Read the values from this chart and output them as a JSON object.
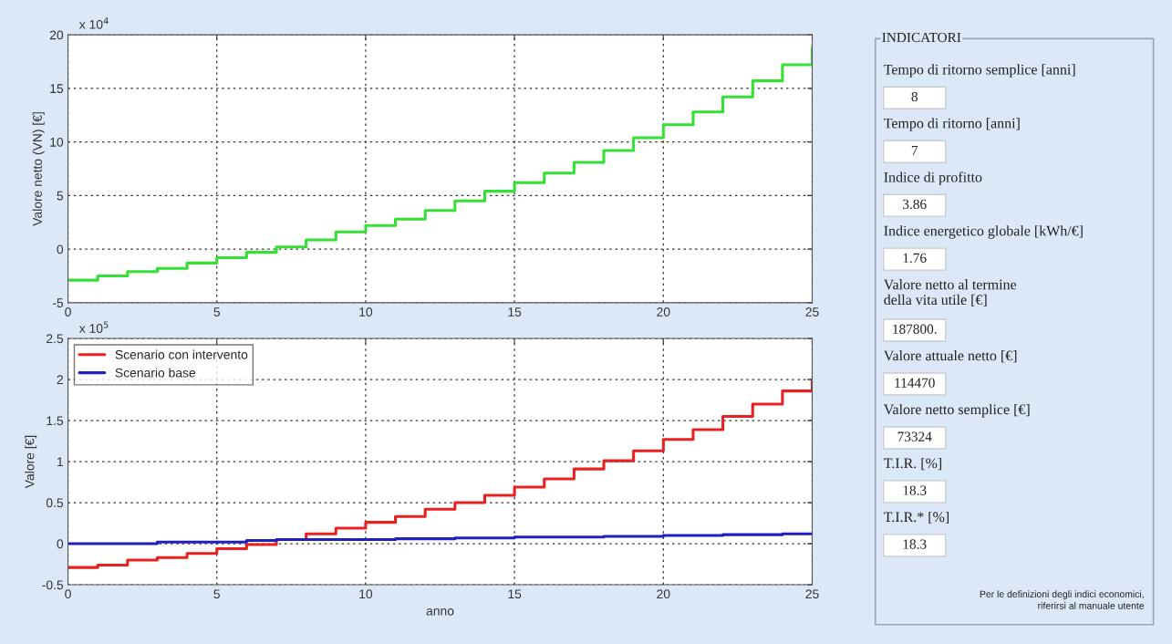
{
  "chart_data": [
    {
      "type": "step",
      "ylabel": "Valore netto (VN) [€]",
      "annotations": [
        "x 10$^{4}$"
      ],
      "x": [
        0,
        1,
        2,
        3,
        4,
        5,
        6,
        7,
        8,
        9,
        10,
        11,
        12,
        13,
        14,
        15,
        16,
        17,
        18,
        19,
        20,
        21,
        22,
        23,
        24,
        25
      ],
      "series": [
        {
          "color": "#33e033",
          "values": [
            -2.9,
            -2.5,
            -2.1,
            -1.8,
            -1.3,
            -0.8,
            -0.3,
            0.2,
            0.85,
            1.6,
            2.2,
            2.8,
            3.6,
            4.5,
            5.4,
            6.2,
            7.1,
            8.1,
            9.2,
            10.4,
            11.6,
            12.8,
            14.2,
            15.7,
            17.2,
            18.8
          ]
        }
      ],
      "xlim": [
        0,
        25
      ],
      "xticks": [
        0,
        5,
        10,
        15,
        20,
        25
      ],
      "ylim": [
        -5,
        20
      ],
      "yticks": [
        -5,
        0,
        5,
        10,
        15,
        20
      ],
      "grid": true,
      "line_style": "solid"
    },
    {
      "type": "step",
      "xlabel": "anno",
      "ylabel": "Valore [€]",
      "annotations": [
        "x 10$^{5}$"
      ],
      "x": [
        0,
        1,
        2,
        3,
        4,
        5,
        6,
        7,
        8,
        9,
        10,
        11,
        12,
        13,
        14,
        15,
        16,
        17,
        18,
        19,
        20,
        21,
        22,
        23,
        24,
        25
      ],
      "series": [
        {
          "name": "Scenario con intervento",
          "color": "#e82020",
          "values": [
            -0.29,
            -0.26,
            -0.2,
            -0.17,
            -0.12,
            -0.06,
            -0.01,
            0.05,
            0.12,
            0.19,
            0.26,
            0.33,
            0.42,
            0.5,
            0.59,
            0.69,
            0.79,
            0.91,
            1.01,
            1.13,
            1.27,
            1.39,
            1.55,
            1.7,
            1.86,
            2.0
          ]
        },
        {
          "name": "Scenario base",
          "color": "#2020c0",
          "values": [
            0,
            0,
            0,
            0.02,
            0.02,
            0.02,
            0.04,
            0.05,
            0.05,
            0.05,
            0.05,
            0.06,
            0.06,
            0.07,
            0.07,
            0.08,
            0.08,
            0.08,
            0.09,
            0.09,
            0.1,
            0.1,
            0.11,
            0.11,
            0.12,
            0.12
          ]
        }
      ],
      "xlim": [
        0,
        25
      ],
      "xticks": [
        0,
        5,
        10,
        15,
        20,
        25
      ],
      "ylim": [
        -0.5,
        2.5
      ],
      "yticks": [
        -0.5,
        0,
        0.5,
        1,
        1.5,
        2,
        2.5
      ],
      "grid": true,
      "legend": "top left",
      "line_style": "solid"
    },
    {
      "type": "other",
      "title": "INDICATORI",
      "annotations": [
        "Tempo di ritorno semplice [anni]",
        "8",
        "Tempo di ritorno [anni]",
        "7",
        "Indice di profitto",
        "3.86",
        "Indice energetico globale [kWh/€]",
        "1.76",
        "Valore netto al termine\ndella vita utile [€]",
        "187800.",
        "Valore attuale netto [€]",
        "114470",
        "Valore netto semplice [€]",
        "73324",
        "T.I.R. [%]",
        "18.3",
        "T.I.R.* [%]",
        "18.3",
        "Per le definizioni degli indici economici,\nriferirsi al manuale utente"
      ]
    }
  ]
}
